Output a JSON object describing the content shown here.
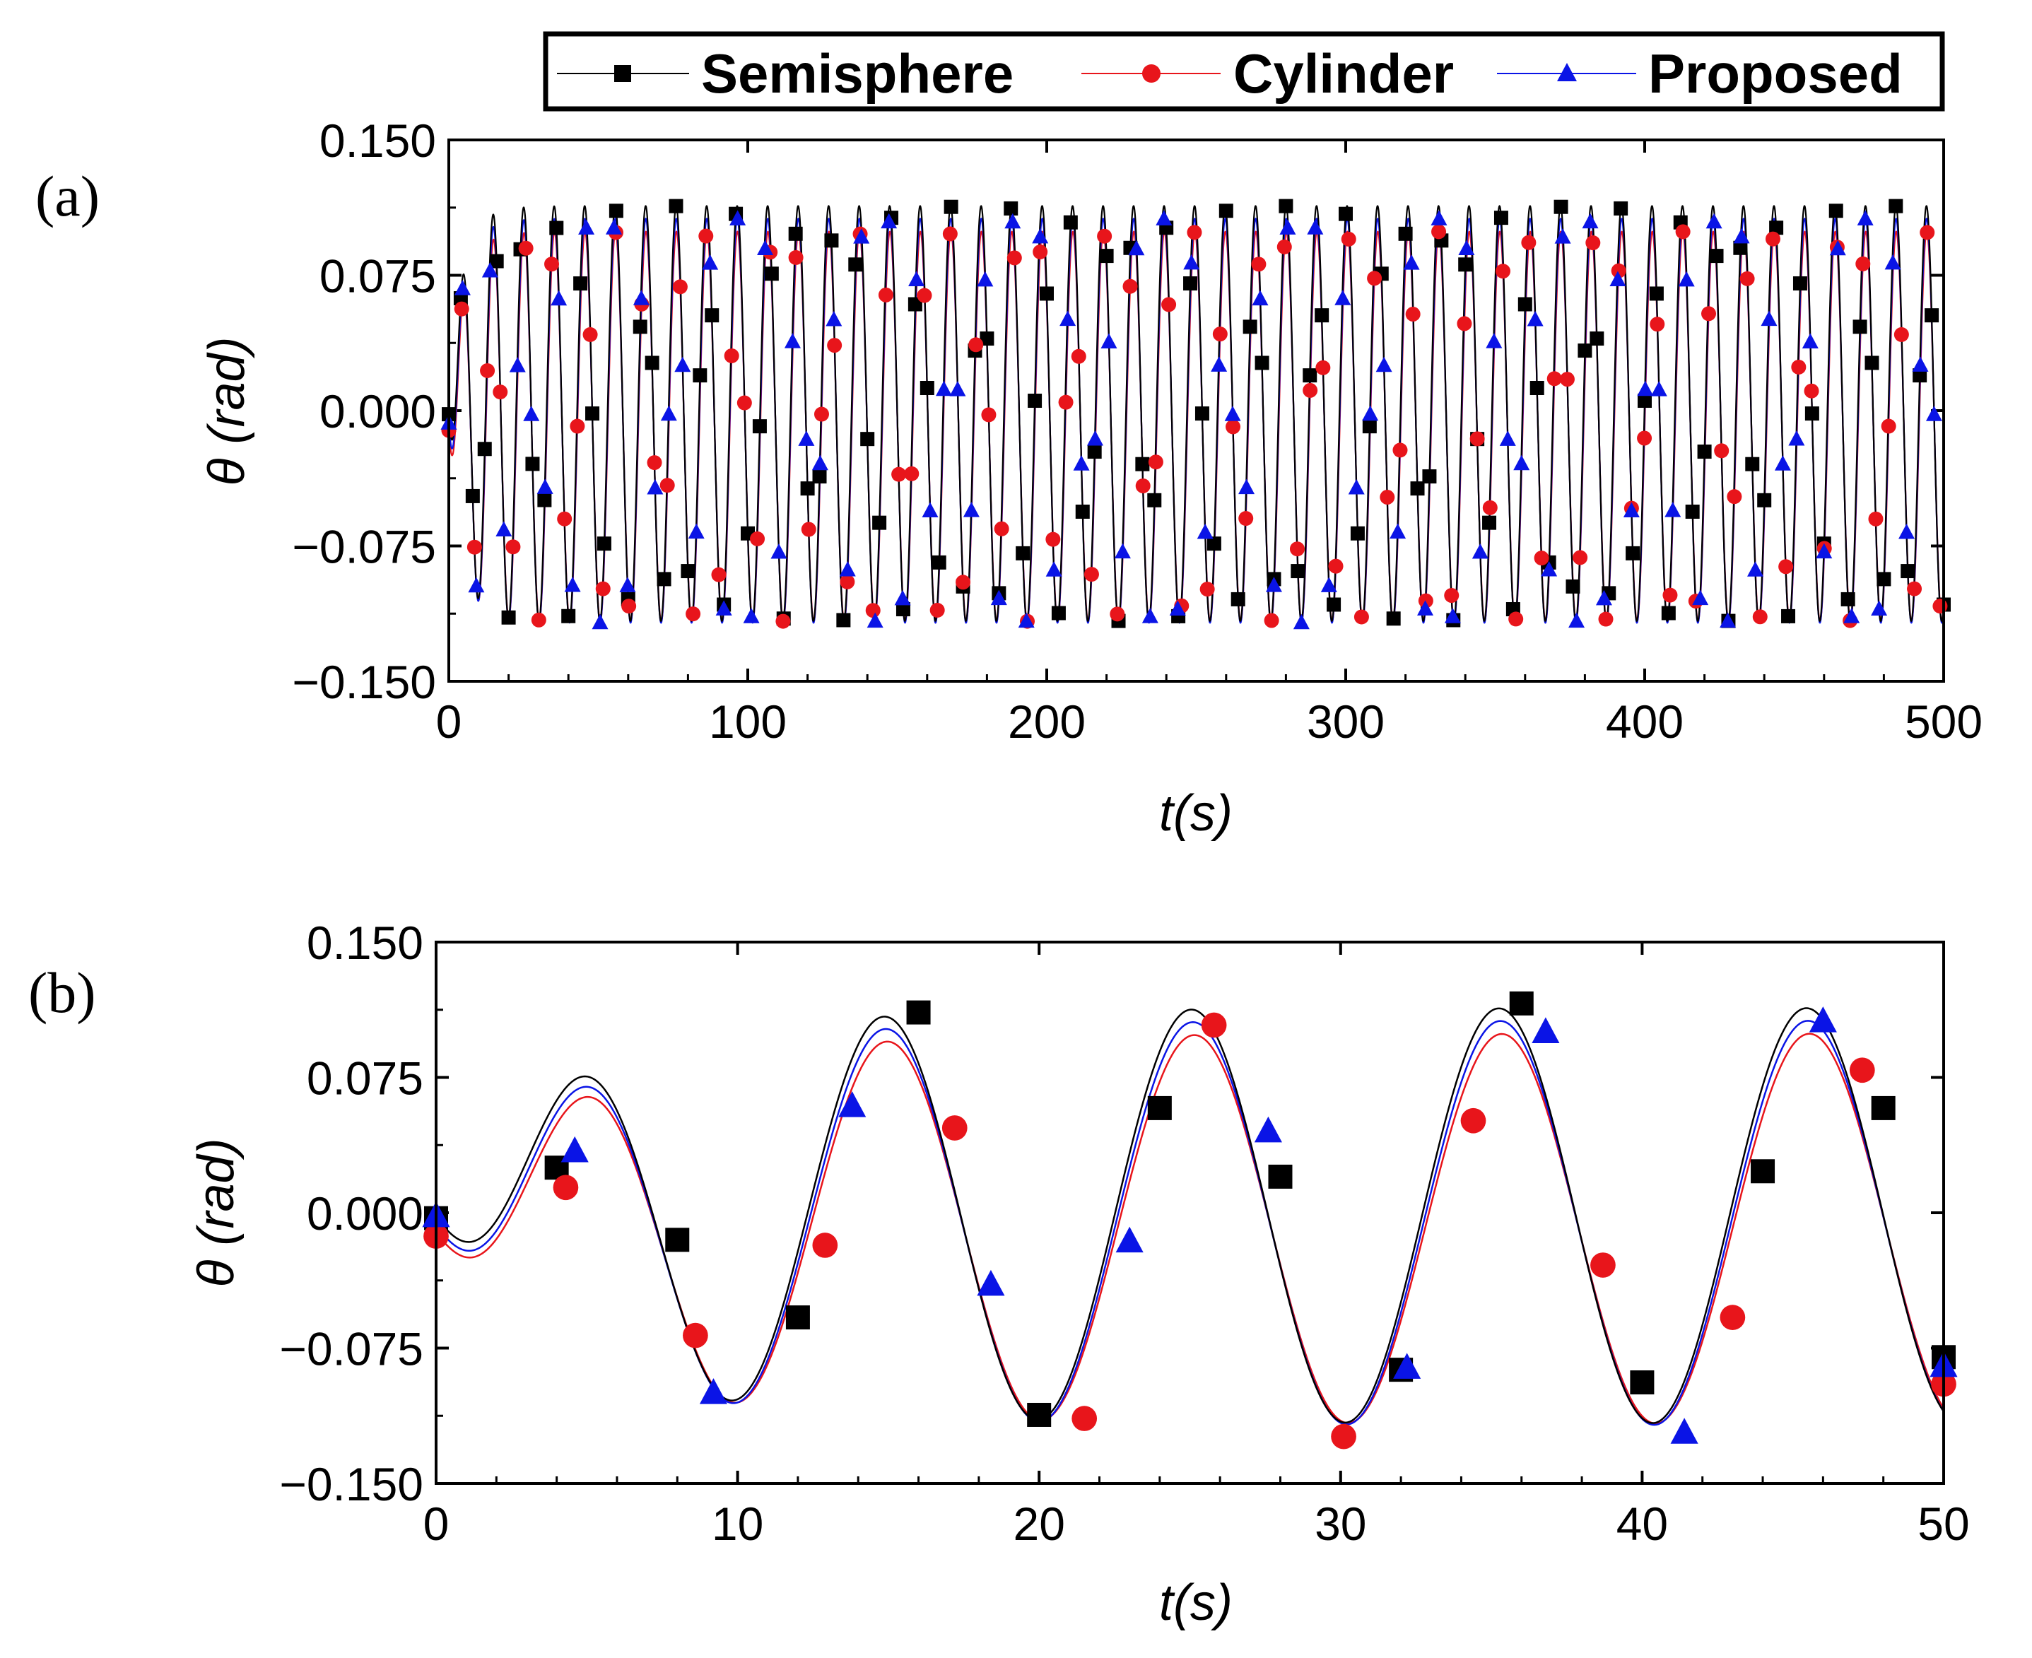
{
  "colors": {
    "semisphere": "#000000",
    "cylinder": "#e8151b",
    "proposed": "#0a14e6",
    "axis": "#000000"
  },
  "legend": {
    "entries": [
      {
        "key": "semisphere",
        "label": "Semisphere",
        "marker": "square"
      },
      {
        "key": "cylinder",
        "label": "Cylinder",
        "marker": "circle"
      },
      {
        "key": "proposed",
        "label": "Proposed",
        "marker": "triangle"
      }
    ]
  },
  "chart_data": [
    {
      "panel": "(a)",
      "type": "line",
      "xlabel": "t(s)",
      "ylabel": "θ (rad)",
      "xlim": [
        0,
        500
      ],
      "ylim": [
        -0.15,
        0.15
      ],
      "xticks": [
        "0",
        "100",
        "200",
        "300",
        "400",
        "500"
      ],
      "yticks": [
        "−0.150",
        "−0.075",
        "0.000",
        "0.075",
        "0.150"
      ],
      "signal": {
        "period_s": 10.2,
        "amplitudes": {
          "semisphere": 0.115,
          "cylinder": 0.108,
          "proposed": 0.112
        },
        "offsets": {
          "semisphere": -0.005,
          "cylinder": -0.012,
          "proposed": -0.008
        }
      },
      "series": [
        {
          "key": "semisphere",
          "name": "Semisphere",
          "marker_every_s": 4.0
        },
        {
          "key": "cylinder",
          "name": "Cylinder",
          "marker_every_s": 4.3
        },
        {
          "key": "proposed",
          "name": "Proposed",
          "marker_every_s": 4.6
        }
      ]
    },
    {
      "panel": "(b)",
      "type": "line",
      "xlabel": "t(s)",
      "ylabel": "θ (rad)",
      "xlim": [
        0,
        50
      ],
      "ylim": [
        -0.15,
        0.15
      ],
      "xticks": [
        "0",
        "10",
        "20",
        "30",
        "40",
        "50"
      ],
      "yticks": [
        "−0.150",
        "−0.075",
        "0.000",
        "0.075",
        "0.150"
      ],
      "signal": {
        "period_s": 10.2
      },
      "series": [
        {
          "key": "semisphere",
          "name": "Semisphere",
          "markers": [
            [
              0,
              -0.003
            ],
            [
              4,
              0.025
            ],
            [
              8,
              -0.015
            ],
            [
              12,
              -0.058
            ],
            [
              16,
              0.111
            ],
            [
              20,
              -0.112
            ],
            [
              24,
              0.058
            ],
            [
              28,
              0.02
            ],
            [
              32,
              -0.087
            ],
            [
              36,
              0.116
            ],
            [
              40,
              -0.094
            ],
            [
              44,
              0.023
            ],
            [
              48,
              0.058
            ],
            [
              50,
              -0.08
            ]
          ]
        },
        {
          "key": "cylinder",
          "name": "Cylinder",
          "markers": [
            [
              0,
              -0.013
            ],
            [
              4.3,
              0.014
            ],
            [
              8.6,
              -0.068
            ],
            [
              12.9,
              -0.018
            ],
            [
              17.2,
              0.047
            ],
            [
              21.5,
              -0.114
            ],
            [
              25.8,
              0.104
            ],
            [
              30.1,
              -0.124
            ],
            [
              34.4,
              0.051
            ],
            [
              38.7,
              -0.029
            ],
            [
              43,
              -0.058
            ],
            [
              47.3,
              0.079
            ],
            [
              50,
              -0.095
            ]
          ]
        },
        {
          "key": "proposed",
          "name": "Proposed",
          "markers": [
            [
              0,
              -0.002
            ],
            [
              4.6,
              0.034
            ],
            [
              9.2,
              -0.1
            ],
            [
              13.8,
              0.059
            ],
            [
              18.4,
              -0.04
            ],
            [
              23,
              -0.016
            ],
            [
              27.6,
              0.045
            ],
            [
              32.2,
              -0.086
            ],
            [
              36.8,
              0.1
            ],
            [
              41.4,
              -0.122
            ],
            [
              46,
              0.106
            ],
            [
              50,
              -0.085
            ]
          ]
        }
      ]
    }
  ]
}
